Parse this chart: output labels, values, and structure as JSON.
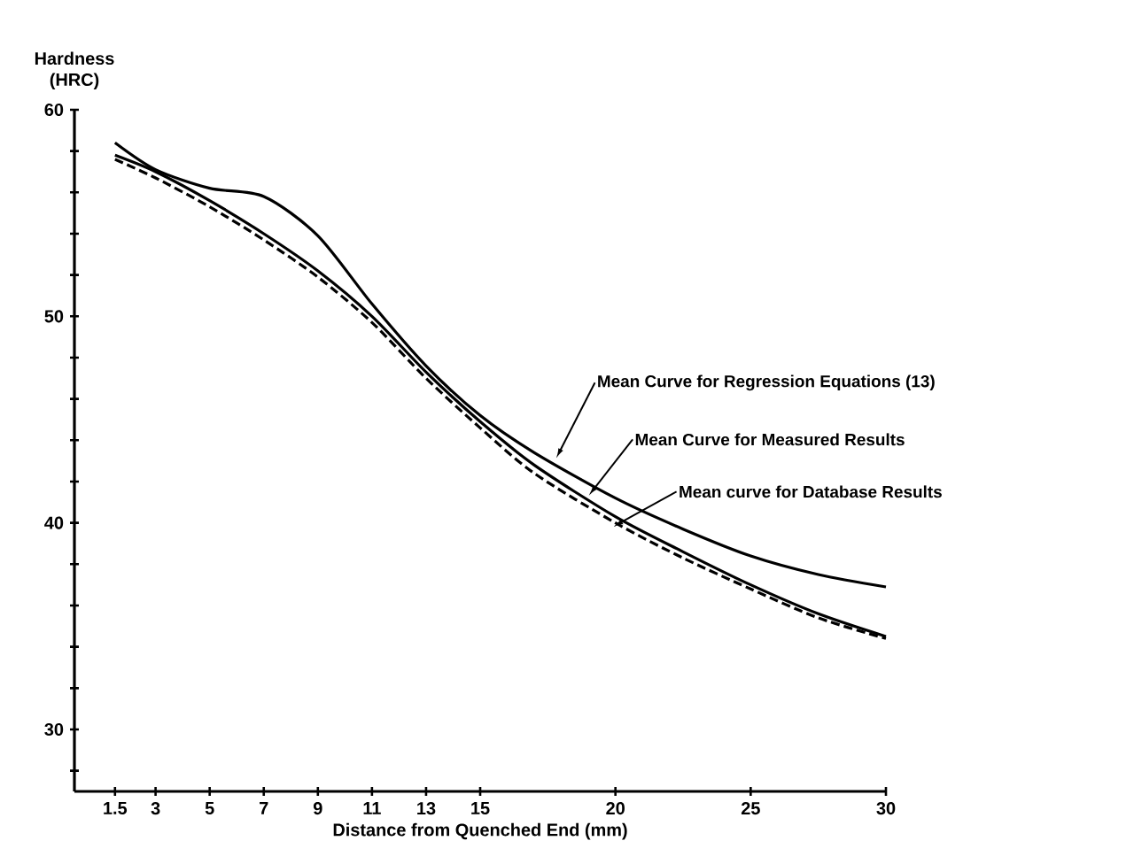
{
  "chart_data": {
    "type": "line",
    "xlabel": "Distance from Quenched End (mm)",
    "ylabel": "Hardness (HRC)",
    "x": [
      1.5,
      3,
      5,
      7,
      9,
      11,
      13,
      15,
      17,
      20,
      22.5,
      25,
      27.5,
      30
    ],
    "series": [
      {
        "color": "#000000",
        "line_style": "solid",
        "values": [
          58.4,
          57.1,
          56.2,
          55.8,
          53.9,
          50.6,
          47.6,
          45.2,
          43.4,
          41.2,
          39.7,
          38.4,
          37.5,
          36.9
        ]
      },
      {
        "color": "#000000",
        "line_style": "solid",
        "values": [
          57.8,
          57.0,
          55.6,
          54.0,
          52.2,
          50.0,
          47.3,
          44.9,
          42.8,
          40.3,
          38.6,
          37.0,
          35.6,
          34.5
        ]
      },
      {
        "color": "#000000",
        "line_style": "dashed",
        "values": [
          57.6,
          56.7,
          55.3,
          53.7,
          51.9,
          49.7,
          47.0,
          44.6,
          42.4,
          40.0,
          38.3,
          36.8,
          35.4,
          34.4
        ]
      }
    ],
    "marker": "none",
    "xlim": [
      0,
      30
    ],
    "ylim": [
      27,
      60
    ],
    "xticks": [
      1.5,
      3,
      5,
      7,
      9,
      11,
      13,
      15,
      20,
      25,
      30
    ],
    "yticks": [
      {
        "value": 28,
        "label": null
      },
      30,
      {
        "value": 32,
        "label": null
      },
      {
        "value": 34,
        "label": null
      },
      {
        "value": 36,
        "label": null
      },
      {
        "value": 38,
        "label": null
      },
      40,
      {
        "value": 42,
        "label": null
      },
      {
        "value": 44,
        "label": null
      },
      {
        "value": 46,
        "label": null
      },
      {
        "value": 48,
        "label": null
      },
      50,
      {
        "value": 52,
        "label": null
      },
      {
        "value": 54,
        "label": null
      },
      {
        "value": 56,
        "label": null
      },
      {
        "value": 58,
        "label": null
      },
      60
    ],
    "annotations": [
      {
        "text": "Mean Curve for Regression Equations (13)",
        "x": 17.8,
        "y": 43.1
      },
      {
        "text": "Mean Curve for Measured Results",
        "x": 19.0,
        "y": 41.3
      },
      {
        "text": "Mean curve for Database Results",
        "x": 19.9,
        "y": 39.8
      }
    ]
  }
}
